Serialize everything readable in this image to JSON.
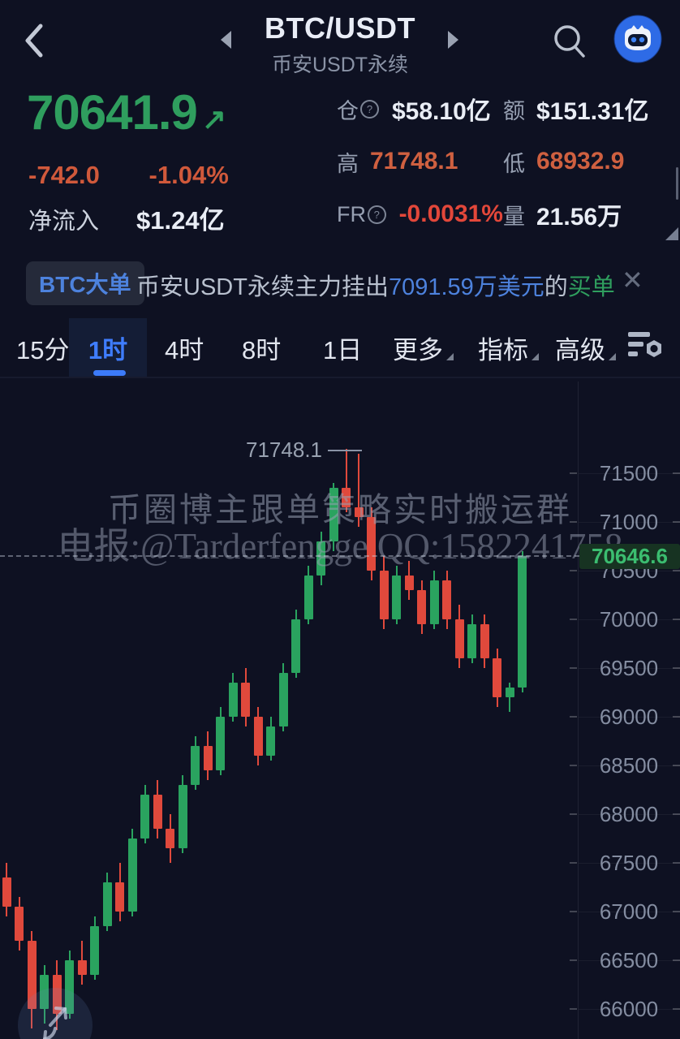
{
  "header": {
    "title": "BTC/USDT",
    "subtitle": "币安USDT永续",
    "icons": {
      "back": "back-arrow-icon",
      "prev": "prev-symbol-triangle-icon",
      "next": "next-symbol-triangle-icon",
      "search": "search-icon",
      "avatar": "aicoin-mascot-avatar"
    }
  },
  "price_panel": {
    "last_price": "70641.9",
    "direction_arrow": "↗",
    "change": "-742.0",
    "change_percent": "-1.04%",
    "net_inflow_label": "净流入",
    "net_inflow_value": "$1.24亿",
    "up_color": "#2f9e5e",
    "down_color": "#d0593b"
  },
  "stats": {
    "cells": [
      {
        "label": "仓",
        "help": true,
        "value": "$58.10亿",
        "color": "#e9edf5"
      },
      {
        "label": "额",
        "help": false,
        "value": "$151.31亿",
        "color": "#e9edf5"
      },
      {
        "label": "高",
        "help": false,
        "value": "71748.1",
        "color": "#cf6040"
      },
      {
        "label": "低",
        "help": false,
        "value": "68932.9",
        "color": "#cf6040"
      },
      {
        "label": "FR",
        "help": true,
        "value": "-0.0031%",
        "color": "#e2473a"
      },
      {
        "label": "量",
        "help": false,
        "value": "21.56万",
        "color": "#e9edf5"
      }
    ]
  },
  "alert_banner": {
    "badge": "BTC大单",
    "message_parts": [
      {
        "text": "币安USDT永续主力挂出",
        "color": "#b9c1cf"
      },
      {
        "text": "7091.59万美元",
        "color": "#4d82dd"
      },
      {
        "text": "的",
        "color": "#b9c1cf"
      },
      {
        "text": "买单",
        "color": "#2f9e5e"
      }
    ],
    "close_icon": "✕"
  },
  "timeframe_tabs": {
    "items": [
      {
        "label": "15分",
        "active": false,
        "caret": false
      },
      {
        "label": "1时",
        "active": true,
        "caret": false
      },
      {
        "label": "4时",
        "active": false,
        "caret": false
      },
      {
        "label": "8时",
        "active": false,
        "caret": false
      },
      {
        "label": "1日",
        "active": false,
        "caret": false
      },
      {
        "label": "更多",
        "active": false,
        "caret": true
      },
      {
        "label": "指标",
        "active": false,
        "caret": true
      },
      {
        "label": "高级",
        "active": false,
        "caret": true
      }
    ],
    "settings_icon": "chart-settings-icon"
  },
  "chart_data": {
    "type": "candlestick",
    "pair": "BTC/USDT",
    "interval": "1时",
    "ylim": [
      65700,
      71900
    ],
    "y_ticks": [
      71500,
      71000,
      70500,
      70000,
      69500,
      69000,
      68500,
      68000,
      67500,
      67000,
      66500,
      66000
    ],
    "grid": "faint-right-column",
    "up_color": "#2aa35f",
    "down_color": "#e0493c",
    "high_annotation": {
      "text": "71748.1",
      "price": 71748.1
    },
    "current_price_annotation": {
      "text": "70646.6",
      "price": 70646.6
    },
    "watermark_lines": [
      "币圈博主跟单策略实时搬运群",
      "电报:@Tarderfengge QQ:1582241758"
    ],
    "candles_ohlc": [
      [
        67350,
        67500,
        66950,
        67050
      ],
      [
        67050,
        67150,
        66600,
        66700
      ],
      [
        66700,
        66800,
        65800,
        66000
      ],
      [
        66000,
        66450,
        65850,
        66350
      ],
      [
        66350,
        66500,
        65780,
        65950
      ],
      [
        65950,
        66600,
        65900,
        66500
      ],
      [
        66500,
        66700,
        66250,
        66350
      ],
      [
        66350,
        66950,
        66300,
        66850
      ],
      [
        66850,
        67400,
        66800,
        67300
      ],
      [
        67300,
        67500,
        66900,
        67000
      ],
      [
        67000,
        67850,
        66950,
        67750
      ],
      [
        67750,
        68300,
        67700,
        68200
      ],
      [
        68200,
        68350,
        67750,
        67850
      ],
      [
        67850,
        68000,
        67500,
        67650
      ],
      [
        67650,
        68400,
        67600,
        68300
      ],
      [
        68300,
        68800,
        68250,
        68700
      ],
      [
        68700,
        68850,
        68350,
        68450
      ],
      [
        68450,
        69100,
        68400,
        69000
      ],
      [
        69000,
        69450,
        68950,
        69350
      ],
      [
        69350,
        69500,
        68900,
        69000
      ],
      [
        69000,
        69100,
        68500,
        68600
      ],
      [
        68600,
        69000,
        68550,
        68900
      ],
      [
        68900,
        69550,
        68850,
        69450
      ],
      [
        69450,
        70100,
        69400,
        70000
      ],
      [
        70000,
        70550,
        69950,
        70450
      ],
      [
        70450,
        70900,
        70350,
        70800
      ],
      [
        70800,
        71400,
        70700,
        71350
      ],
      [
        71350,
        71748.1,
        71100,
        71150
      ],
      [
        71150,
        71700,
        70950,
        71050
      ],
      [
        71050,
        71150,
        70400,
        70500
      ],
      [
        70500,
        70650,
        69900,
        70000
      ],
      [
        70000,
        70550,
        69950,
        70450
      ],
      [
        70450,
        70600,
        70200,
        70300
      ],
      [
        70300,
        70400,
        69850,
        69950
      ],
      [
        69950,
        70500,
        69900,
        70400
      ],
      [
        70400,
        70500,
        69900,
        70000
      ],
      [
        70000,
        70150,
        69500,
        69600
      ],
      [
        69600,
        70050,
        69550,
        69950
      ],
      [
        69950,
        70050,
        69500,
        69600
      ],
      [
        69600,
        69700,
        69100,
        69200
      ],
      [
        69200,
        69350,
        69050,
        69300
      ],
      [
        69300,
        70700,
        69250,
        70646.6
      ]
    ]
  },
  "floating_button": {
    "icon": "reset-zoom-arrows-icon"
  }
}
